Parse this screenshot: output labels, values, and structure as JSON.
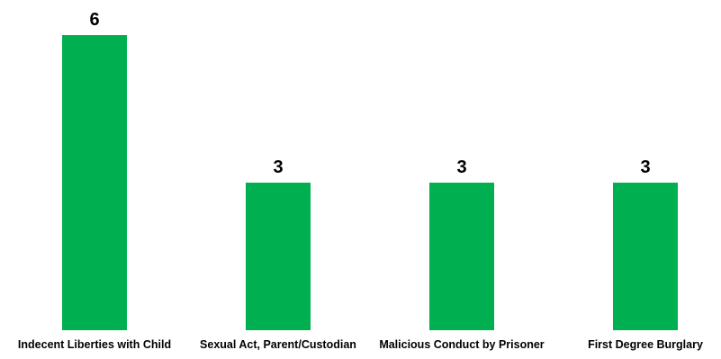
{
  "chart_data": {
    "type": "bar",
    "categories": [
      "Indecent Liberties with Child",
      "Sexual Act, Parent/Custodian",
      "Malicious Conduct by Prisoner",
      "First Degree Burglary"
    ],
    "values": [
      6,
      3,
      3,
      3
    ],
    "title": "",
    "xlabel": "",
    "ylabel": "",
    "ylim": [
      0,
      6
    ],
    "grid": false,
    "legend": "none",
    "bar_color": "#00B050"
  }
}
